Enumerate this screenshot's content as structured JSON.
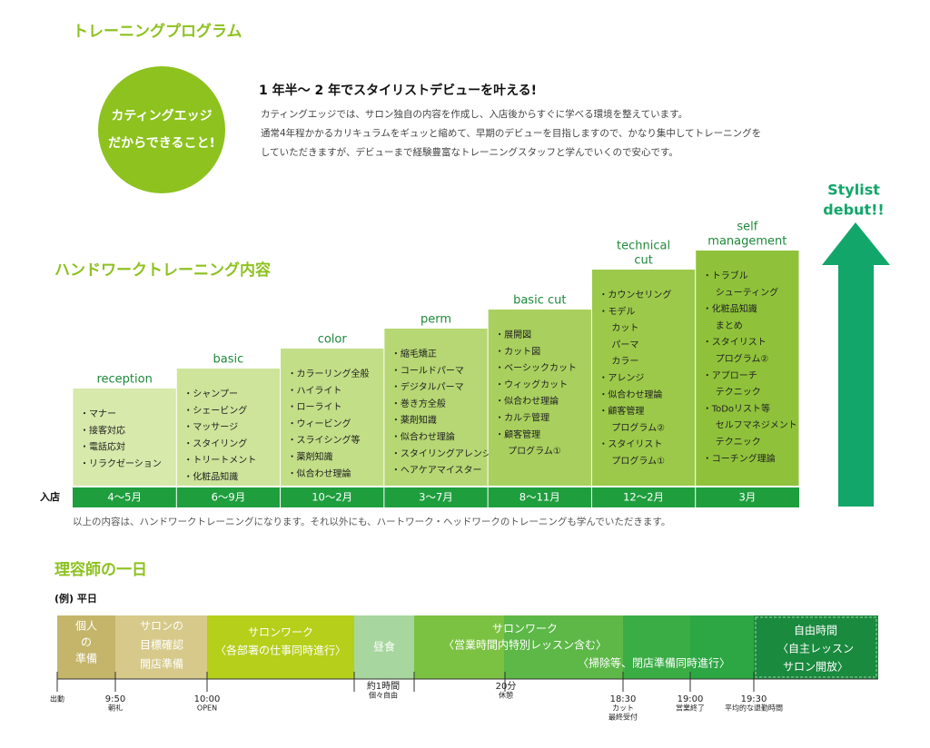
{
  "header": {
    "title": "トレーニングプログラム"
  },
  "intro": {
    "badge": [
      "カティングエッジ",
      "だからできること!"
    ],
    "heading": "1 年半〜 2 年でスタイリストデビューを叶える!",
    "body": [
      "カティングエッジでは、サロン独自の内容を作成し、入店後からすぐに学べる環境を整えています。",
      "通常4年程かかるカリキュラムをギュッと縮めて、早期のデビューを目指しますので、かなり集中してトレーニングを",
      "していただきますが、デビューまで経験豊富なトレーニングスタッフと学んでいくので安心です。"
    ]
  },
  "goal": [
    "Stylist",
    "debut!!"
  ],
  "handwork": {
    "title": "ハンドワークトレーニング内容",
    "start_label": "入店",
    "steps": [
      {
        "name": [
          "reception"
        ],
        "items": [
          "・マナー",
          "・接客対応",
          "・電話応対",
          "・リラクゼーション"
        ],
        "period": "4〜5月"
      },
      {
        "name": [
          "basic"
        ],
        "items": [
          "・シャンプー",
          "・シェービング",
          "・マッサージ",
          "・スタイリング",
          "・トリートメント",
          "・化粧品知識"
        ],
        "period": "6〜9月"
      },
      {
        "name": [
          "color"
        ],
        "items": [
          "・カラーリング全般",
          "・ハイライト",
          "・ローライト",
          "・ウィービング",
          "・スライシング等",
          "・薬剤知識",
          "・似合わせ理論"
        ],
        "period": "10〜2月"
      },
      {
        "name": [
          "perm"
        ],
        "items": [
          "・縮毛矯正",
          "・コールドパーマ",
          "・デジタルパーマ",
          "・巻き方全般",
          "・薬剤知識",
          "・似合わせ理論",
          "・スタイリングアレンジ",
          "・ヘアケアマイスター"
        ],
        "period": "3〜7月"
      },
      {
        "name": [
          "basic cut"
        ],
        "items": [
          "・展開図",
          "・カット図",
          "・ベーシックカット",
          "・ウィッグカット",
          "・似合わせ理論",
          "・カルテ管理",
          "・顧客管理",
          "プログラム①"
        ],
        "period": "8〜11月"
      },
      {
        "name": [
          "technical",
          "cut"
        ],
        "items": [
          "・カウンセリング",
          "・モデル",
          "カット",
          "パーマ",
          "カラー",
          "・アレンジ",
          "・似合わせ理論",
          "・顧客管理",
          "プログラム②",
          "・スタイリスト",
          "プログラム①"
        ],
        "period": "12〜2月"
      },
      {
        "name": [
          "self",
          "management"
        ],
        "items": [
          "・トラブル",
          "シューティング",
          "・化粧品知識",
          "まとめ",
          "・スタイリスト",
          "プログラム②",
          "・アプローチ",
          "テクニック",
          "・ToDoリスト等",
          "セルフマネジメント",
          "テクニック",
          "・コーチング理論"
        ],
        "period": "3月"
      }
    ],
    "note": "以上の内容は、ハンドワークトレーニングになります。それ以外にも、ハートワーク・ヘッドワークのトレーニングも学んでいただきます。"
  },
  "day": {
    "title": "理容師の一日",
    "subtitle": "(例) 平日",
    "blocks": [
      [
        "個人",
        "の",
        "準備"
      ],
      [
        "サロンの",
        "目標確認",
        "開店準備"
      ],
      [
        "サロンワーク",
        "〈各部署の仕事同時進行〉"
      ],
      [
        "昼食"
      ],
      [
        "サロンワーク",
        "〈営業時間内特別レッスン含む〉"
      ],
      [
        "〈掃除等、閉店準備同時進行〉"
      ],
      [
        "自由時間",
        "〈自主レッスン",
        "サロン開放〉"
      ]
    ],
    "times": [
      [
        "出動"
      ],
      [
        "9:50",
        "朝礼"
      ],
      [
        "10:00",
        "OPEN"
      ],
      [
        "約1時間",
        "個々自由"
      ],
      [
        "20分",
        "休憩"
      ],
      [
        "18:30",
        "カット",
        "最終受付"
      ],
      [
        "19:00",
        "営業終了"
      ],
      [
        "19:30",
        "平均的な退勤時間"
      ]
    ]
  }
}
